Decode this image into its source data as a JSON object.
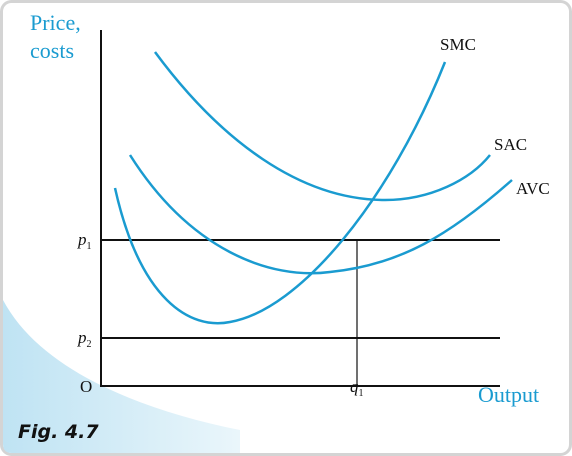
{
  "axes": {
    "y_label_lines": [
      "Price,",
      "costs"
    ],
    "x_label": "Output",
    "origin": "O"
  },
  "curves": [
    {
      "label": "SMC"
    },
    {
      "label": "SAC"
    },
    {
      "label": "AVC"
    }
  ],
  "levels": [
    {
      "label": "p",
      "subscript": "1"
    },
    {
      "label": "p",
      "subscript": "2"
    }
  ],
  "quantity": {
    "label": "q",
    "subscript": "1"
  },
  "caption": "Fig. 4.7"
}
